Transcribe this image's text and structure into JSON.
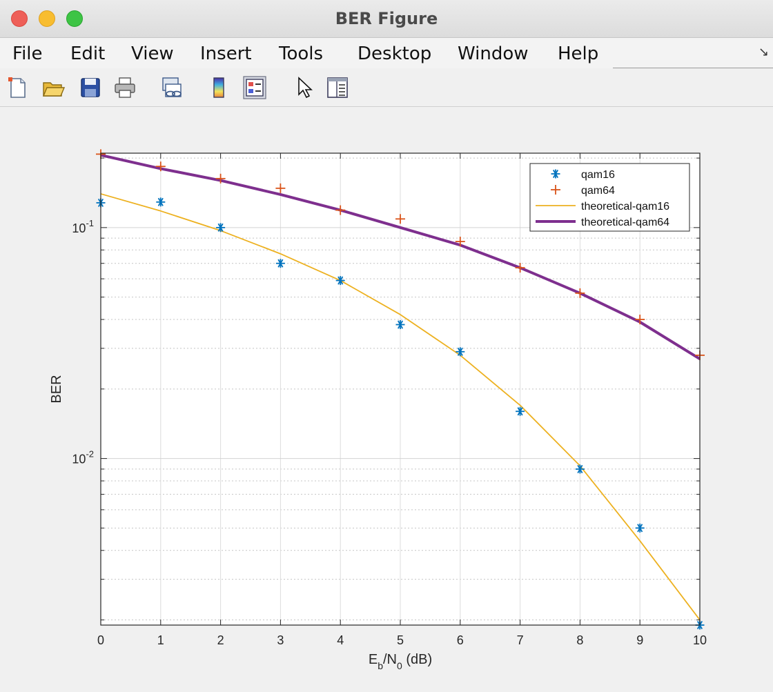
{
  "window": {
    "title": "BER Figure"
  },
  "menu": {
    "items": [
      "File",
      "Edit",
      "View",
      "Insert",
      "Tools",
      "Desktop",
      "Window",
      "Help"
    ]
  },
  "toolbar": {
    "buttons": [
      "new-figure-icon",
      "open-file-icon",
      "save-icon",
      "print-icon",
      "link-plot-icon",
      "colorbar-icon",
      "legend-icon",
      "edit-plot-arrow-icon",
      "property-inspector-icon"
    ]
  },
  "chart_data": {
    "type": "line",
    "xlabel_main": "E",
    "xlabel_sub_b": "b",
    "xlabel_mid": "/N",
    "xlabel_sub_0": "0",
    "xlabel_tail": " (dB)",
    "ylabel": "BER",
    "xlim": [
      0,
      10
    ],
    "ylim": [
      0.0019,
      0.21
    ],
    "yscale": "log",
    "grid": true,
    "legend_position": "top-right",
    "x_ticks": [
      "0",
      "1",
      "2",
      "3",
      "4",
      "5",
      "6",
      "7",
      "8",
      "9",
      "10"
    ],
    "y_ticks": [
      {
        "base": "10",
        "exp": "-1",
        "value": 0.1
      },
      {
        "base": "10",
        "exp": "-2",
        "value": 0.01
      }
    ],
    "x": [
      0,
      1,
      2,
      3,
      4,
      5,
      6,
      7,
      8,
      9,
      10
    ],
    "series": [
      {
        "name": "qam16",
        "style": "asterisk-marker",
        "color": "#0072BD",
        "values": [
          0.128,
          0.129,
          0.1,
          0.07,
          0.059,
          0.038,
          0.029,
          0.016,
          0.009,
          0.005,
          0.0019
        ]
      },
      {
        "name": "qam64",
        "style": "plus-marker",
        "color": "#D95319",
        "values": [
          0.208,
          0.184,
          0.163,
          0.148,
          0.119,
          0.109,
          0.087,
          0.067,
          0.052,
          0.04,
          0.028
        ]
      },
      {
        "name": "theoretical-qam16",
        "style": "thin-line",
        "color": "#EDB120",
        "values": [
          0.14,
          0.118,
          0.097,
          0.077,
          0.059,
          0.042,
          0.028,
          0.017,
          0.0093,
          0.0044,
          0.002
        ]
      },
      {
        "name": "theoretical-qam64",
        "style": "thick-line",
        "color": "#7E2F8E",
        "values": [
          0.206,
          0.18,
          0.16,
          0.139,
          0.119,
          0.1,
          0.084,
          0.067,
          0.052,
          0.039,
          0.027
        ]
      }
    ]
  }
}
